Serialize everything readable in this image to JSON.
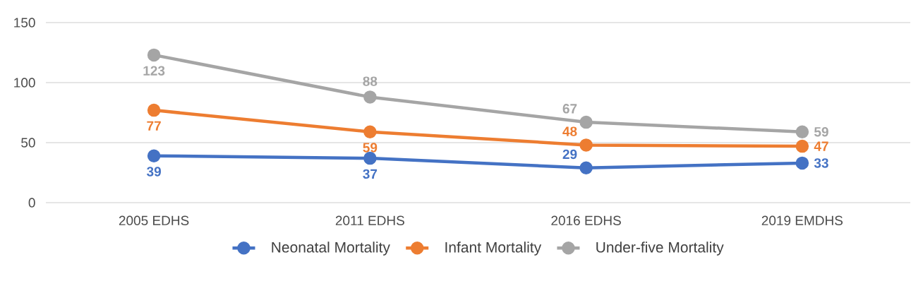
{
  "chart_data": {
    "type": "line",
    "categories": [
      "2005 EDHS",
      "2011 EDHS",
      "2016 EDHS",
      "2019 EMDHS"
    ],
    "series": [
      {
        "name": "Neonatal Mortality",
        "color": "#4472c4",
        "values": [
          39,
          37,
          29,
          33
        ]
      },
      {
        "name": "Infant Mortality",
        "color": "#ed7d31",
        "values": [
          77,
          59,
          48,
          47
        ]
      },
      {
        "name": "Under-five Mortality",
        "color": "#a5a5a5",
        "values": [
          123,
          88,
          67,
          59
        ]
      }
    ],
    "ylim": [
      0,
      150
    ],
    "yticks": [
      0,
      50,
      100,
      150
    ],
    "grid": "y",
    "legend": "bottom",
    "marker": "circle",
    "line_style": "solid",
    "data_labels": true
  }
}
